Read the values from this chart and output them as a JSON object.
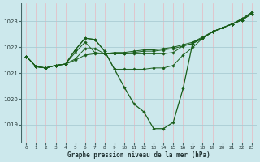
{
  "title": "Graphe pression niveau de la mer (hPa)",
  "bg_color": "#cce8ec",
  "grid_color_major": "#aaccd4",
  "grid_color_pink": "#e8b8c0",
  "line_color": "#1a5e1a",
  "xlim": [
    -0.5,
    23.5
  ],
  "ylim": [
    1018.3,
    1023.7
  ],
  "yticks": [
    1019,
    1020,
    1021,
    1022,
    1023
  ],
  "xticks": [
    0,
    1,
    2,
    3,
    4,
    5,
    6,
    7,
    8,
    9,
    10,
    11,
    12,
    13,
    14,
    15,
    16,
    17,
    18,
    19,
    20,
    21,
    22,
    23
  ],
  "series": [
    [
      1021.65,
      1021.25,
      1021.2,
      1021.3,
      1021.35,
      1021.5,
      1021.7,
      1021.75,
      1021.75,
      1021.8,
      1021.8,
      1021.85,
      1021.9,
      1021.9,
      1021.95,
      1022.0,
      1022.1,
      1022.2,
      1022.4,
      1022.6,
      1022.75,
      1022.9,
      1023.05,
      1023.3
    ],
    [
      1021.65,
      1021.25,
      1021.2,
      1021.3,
      1021.35,
      1021.55,
      1021.95,
      1021.95,
      1021.75,
      1021.75,
      1021.75,
      1021.8,
      1021.85,
      1021.85,
      1021.9,
      1021.95,
      1022.05,
      1022.15,
      1022.35,
      1022.6,
      1022.75,
      1022.9,
      1023.05,
      1023.3
    ],
    [
      1021.65,
      1021.25,
      1021.2,
      1021.3,
      1021.35,
      1021.8,
      1022.2,
      1021.8,
      1021.75,
      1021.75,
      1021.75,
      1021.75,
      1021.75,
      1021.75,
      1021.75,
      1021.8,
      1022.05,
      1022.15,
      1022.35,
      1022.6,
      1022.75,
      1022.9,
      1023.05,
      1023.3
    ],
    [
      1021.65,
      1021.25,
      1021.2,
      1021.3,
      1021.35,
      1021.9,
      1022.35,
      1022.3,
      1021.85,
      1021.15,
      1020.45,
      1019.8,
      1019.5,
      1018.85,
      1018.85,
      1019.1,
      1020.4,
      1022.2,
      1022.35,
      1022.6,
      1022.75,
      1022.9,
      1023.1,
      1023.35
    ],
    [
      1021.65,
      1021.25,
      1021.2,
      1021.3,
      1021.35,
      1021.9,
      1022.35,
      1022.3,
      1021.85,
      1021.15,
      1021.15,
      1021.15,
      1021.15,
      1021.2,
      1021.2,
      1021.3,
      1021.7,
      1022.0,
      1022.35,
      1022.6,
      1022.75,
      1022.9,
      1023.1,
      1023.35
    ]
  ]
}
